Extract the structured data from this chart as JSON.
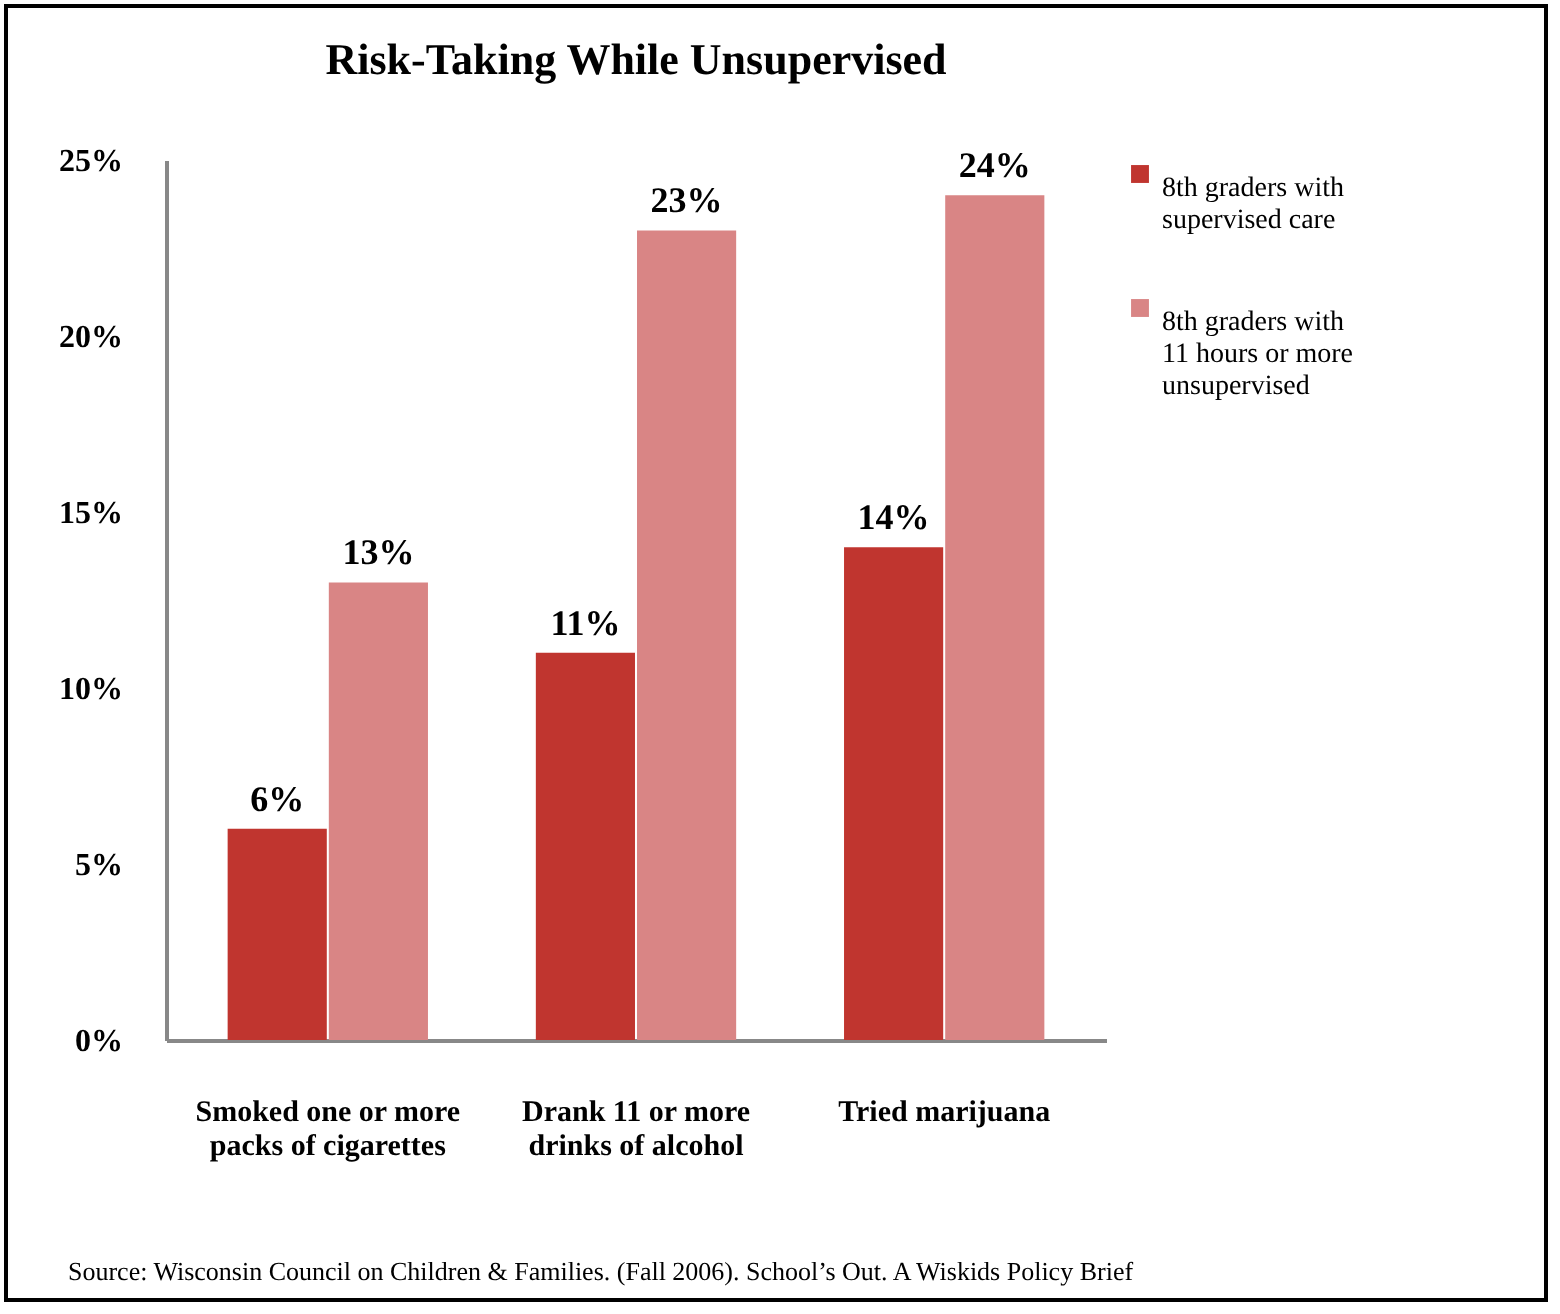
{
  "chart_data": {
    "type": "bar",
    "title": "Risk-Taking While Unsupervised",
    "categories": [
      "Smoked one or more packs of cigarettes",
      "Drank 11 or more drinks of alcohol",
      "Tried marijuana"
    ],
    "series": [
      {
        "name": "8th graders with supervised care",
        "color": "#c0352f",
        "values": [
          6,
          11,
          14
        ],
        "value_labels": [
          "6%",
          "11%",
          "14%"
        ]
      },
      {
        "name": "8th graders with 11 hours or more unsupervised",
        "color": "#d98585",
        "values": [
          13,
          23,
          24
        ],
        "value_labels": [
          "13%",
          "23%",
          "24%"
        ]
      }
    ],
    "ylim": [
      0,
      25
    ],
    "yticks": [
      {
        "value": 0,
        "label": "0%"
      },
      {
        "value": 5,
        "label": "5%"
      },
      {
        "value": 10,
        "label": "10%"
      },
      {
        "value": 15,
        "label": "15%"
      },
      {
        "value": 20,
        "label": "20%"
      },
      {
        "value": 25,
        "label": "25%"
      }
    ],
    "grid": false,
    "legend": "right",
    "annotations": [
      "Source: Wisconsin Council on Children & Families. (Fall 2006). School’s Out. A Wiskids Policy Brief"
    ]
  }
}
